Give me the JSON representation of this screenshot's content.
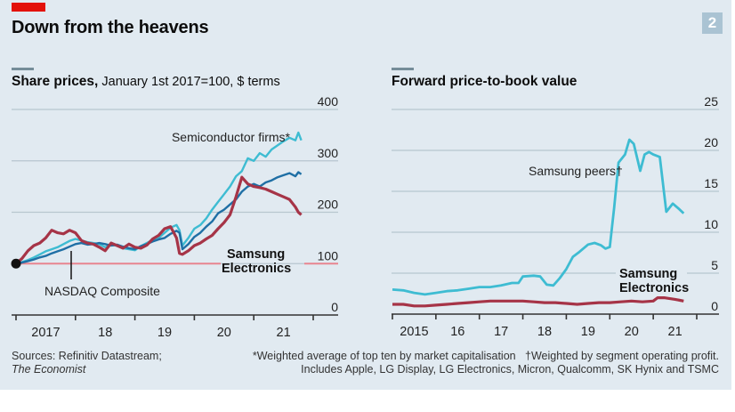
{
  "header": {
    "title": "Down from the heavens",
    "chart_number": "2"
  },
  "left": {
    "title_bold": "Share prices,",
    "title_rest": " January 1st 2017=100, $ terms"
  },
  "right": {
    "title_bold": "Forward price-to-book value"
  },
  "footer": {
    "sources": "Sources: Refinitiv Datastream;",
    "publisher": "The Economist",
    "note1": "*Weighted average of top ten by market capitalisation",
    "note2": "†Weighted by segment operating profit.",
    "note3": "Includes Apple, LG Display, LG Electronics, Micron, Qualcomm, SK Hynix and TSMC"
  },
  "colors": {
    "semiconductor": "#3ebcd2",
    "nasdaq": "#1f6fa5",
    "samsung": "#a63447",
    "baseline100": "#e8858f",
    "grid": "#b7c6cf",
    "axis": "#333333",
    "brand_red": "#e3120b"
  },
  "chart_data": [
    {
      "type": "line",
      "title": "Share prices",
      "subtitle": "January 1st 2017=100, $ terms",
      "xlabel": "",
      "ylabel": "",
      "ylim": [
        0,
        400
      ],
      "yticks": [
        0,
        100,
        200,
        300,
        400
      ],
      "xlim": [
        2017.0,
        2021.85
      ],
      "xticks": [
        2017,
        2018,
        2019,
        2020,
        2021,
        2022
      ],
      "xtick_labels": [
        "2017",
        "18",
        "19",
        "20",
        "21"
      ],
      "baseline": 100,
      "grid": true,
      "annotations": [
        "Semiconductor firms*",
        "NASDAQ Composite",
        "Samsung Electronics"
      ],
      "series": [
        {
          "name": "Semiconductor firms*",
          "x": [
            2017.0,
            2017.1,
            2017.2,
            2017.3,
            2017.4,
            2017.5,
            2017.6,
            2017.7,
            2017.8,
            2017.9,
            2018.0,
            2018.1,
            2018.2,
            2018.3,
            2018.4,
            2018.5,
            2018.6,
            2018.7,
            2018.8,
            2018.9,
            2019.0,
            2019.1,
            2019.2,
            2019.3,
            2019.4,
            2019.5,
            2019.6,
            2019.7,
            2019.75,
            2019.8,
            2019.9,
            2020.0,
            2020.1,
            2020.2,
            2020.3,
            2020.4,
            2020.5,
            2020.6,
            2020.7,
            2020.8,
            2020.9,
            2021.0,
            2021.1,
            2021.2,
            2021.3,
            2021.4,
            2021.5,
            2021.6,
            2021.7,
            2021.75,
            2021.8
          ],
          "values": [
            100,
            103,
            107,
            112,
            118,
            124,
            128,
            132,
            138,
            144,
            148,
            145,
            142,
            140,
            138,
            132,
            136,
            135,
            130,
            128,
            126,
            134,
            140,
            146,
            150,
            160,
            170,
            175,
            165,
            135,
            150,
            168,
            175,
            188,
            205,
            220,
            235,
            250,
            270,
            280,
            305,
            300,
            315,
            308,
            322,
            330,
            338,
            345,
            340,
            355,
            340
          ]
        },
        {
          "name": "NASDAQ Composite",
          "x": [
            2017.0,
            2017.1,
            2017.2,
            2017.3,
            2017.4,
            2017.5,
            2017.6,
            2017.7,
            2017.8,
            2017.9,
            2018.0,
            2018.1,
            2018.2,
            2018.3,
            2018.4,
            2018.5,
            2018.6,
            2018.7,
            2018.8,
            2018.9,
            2019.0,
            2019.1,
            2019.2,
            2019.3,
            2019.4,
            2019.5,
            2019.6,
            2019.7,
            2019.75,
            2019.8,
            2019.9,
            2020.0,
            2020.1,
            2020.2,
            2020.3,
            2020.4,
            2020.5,
            2020.6,
            2020.7,
            2020.8,
            2020.9,
            2021.0,
            2021.1,
            2021.2,
            2021.3,
            2021.4,
            2021.5,
            2021.6,
            2021.7,
            2021.75,
            2021.8
          ],
          "values": [
            100,
            102,
            105,
            108,
            112,
            115,
            120,
            124,
            128,
            133,
            138,
            140,
            137,
            138,
            140,
            138,
            135,
            137,
            133,
            130,
            128,
            134,
            138,
            143,
            147,
            150,
            158,
            164,
            160,
            128,
            138,
            152,
            160,
            172,
            182,
            198,
            205,
            215,
            225,
            240,
            250,
            255,
            250,
            258,
            262,
            268,
            272,
            276,
            270,
            278,
            274
          ]
        },
        {
          "name": "Samsung Electronics",
          "x": [
            2017.0,
            2017.1,
            2017.2,
            2017.3,
            2017.4,
            2017.5,
            2017.6,
            2017.7,
            2017.8,
            2017.9,
            2018.0,
            2018.1,
            2018.2,
            2018.3,
            2018.4,
            2018.5,
            2018.6,
            2018.7,
            2018.8,
            2018.9,
            2019.0,
            2019.1,
            2019.2,
            2019.3,
            2019.4,
            2019.5,
            2019.6,
            2019.7,
            2019.75,
            2019.8,
            2019.9,
            2020.0,
            2020.1,
            2020.2,
            2020.3,
            2020.4,
            2020.5,
            2020.6,
            2020.7,
            2020.8,
            2020.9,
            2021.0,
            2021.1,
            2021.2,
            2021.3,
            2021.4,
            2021.5,
            2021.6,
            2021.7,
            2021.75,
            2021.8
          ],
          "values": [
            100,
            110,
            125,
            135,
            140,
            150,
            165,
            160,
            158,
            165,
            160,
            145,
            140,
            138,
            132,
            125,
            140,
            135,
            130,
            138,
            132,
            130,
            136,
            148,
            155,
            168,
            172,
            150,
            120,
            118,
            125,
            135,
            140,
            148,
            155,
            168,
            180,
            195,
            230,
            268,
            255,
            250,
            248,
            245,
            240,
            235,
            230,
            225,
            210,
            200,
            195
          ]
        }
      ]
    },
    {
      "type": "line",
      "title": "Forward price-to-book value",
      "xlabel": "",
      "ylabel": "",
      "ylim": [
        0,
        25
      ],
      "yticks": [
        0,
        5,
        10,
        15,
        20,
        25
      ],
      "xlim": [
        2015.0,
        2021.85
      ],
      "xticks": [
        2015,
        2016,
        2017,
        2018,
        2019,
        2020,
        2021,
        2022
      ],
      "xtick_labels": [
        "2015",
        "16",
        "17",
        "18",
        "19",
        "20",
        "21"
      ],
      "grid": true,
      "annotations": [
        "Samsung peers†",
        "Samsung Electronics"
      ],
      "series": [
        {
          "name": "Samsung peers†",
          "x": [
            2015.0,
            2015.25,
            2015.5,
            2015.75,
            2016.0,
            2016.25,
            2016.5,
            2016.75,
            2017.0,
            2017.25,
            2017.5,
            2017.75,
            2017.9,
            2018.0,
            2018.25,
            2018.4,
            2018.55,
            2018.7,
            2018.85,
            2019.0,
            2019.15,
            2019.3,
            2019.5,
            2019.65,
            2019.8,
            2019.9,
            2020.0,
            2020.1,
            2020.2,
            2020.35,
            2020.45,
            2020.55,
            2020.7,
            2020.8,
            2020.9,
            2021.0,
            2021.15,
            2021.3,
            2021.45,
            2021.6,
            2021.7
          ],
          "values": [
            3.0,
            2.9,
            2.6,
            2.4,
            2.6,
            2.8,
            2.9,
            3.1,
            3.3,
            3.3,
            3.5,
            3.8,
            3.8,
            4.6,
            4.7,
            4.6,
            3.6,
            3.5,
            4.4,
            5.5,
            7.0,
            7.6,
            8.5,
            8.7,
            8.4,
            8.0,
            8.2,
            13.0,
            18.5,
            19.5,
            21.3,
            20.8,
            17.5,
            19.5,
            19.8,
            19.5,
            19.2,
            12.5,
            13.5,
            12.8,
            12.3
          ]
        },
        {
          "name": "Samsung Electronics",
          "x": [
            2015.0,
            2015.25,
            2015.5,
            2015.75,
            2016.0,
            2016.25,
            2016.5,
            2016.75,
            2017.0,
            2017.25,
            2017.5,
            2017.75,
            2018.0,
            2018.25,
            2018.5,
            2018.75,
            2019.0,
            2019.25,
            2019.5,
            2019.75,
            2020.0,
            2020.25,
            2020.5,
            2020.75,
            2021.0,
            2021.1,
            2021.25,
            2021.5,
            2021.7
          ],
          "values": [
            1.2,
            1.2,
            1.0,
            1.0,
            1.1,
            1.2,
            1.3,
            1.4,
            1.5,
            1.6,
            1.6,
            1.6,
            1.6,
            1.5,
            1.4,
            1.4,
            1.3,
            1.2,
            1.3,
            1.4,
            1.4,
            1.5,
            1.6,
            1.5,
            1.6,
            2.0,
            2.0,
            1.8,
            1.6
          ]
        }
      ]
    }
  ]
}
